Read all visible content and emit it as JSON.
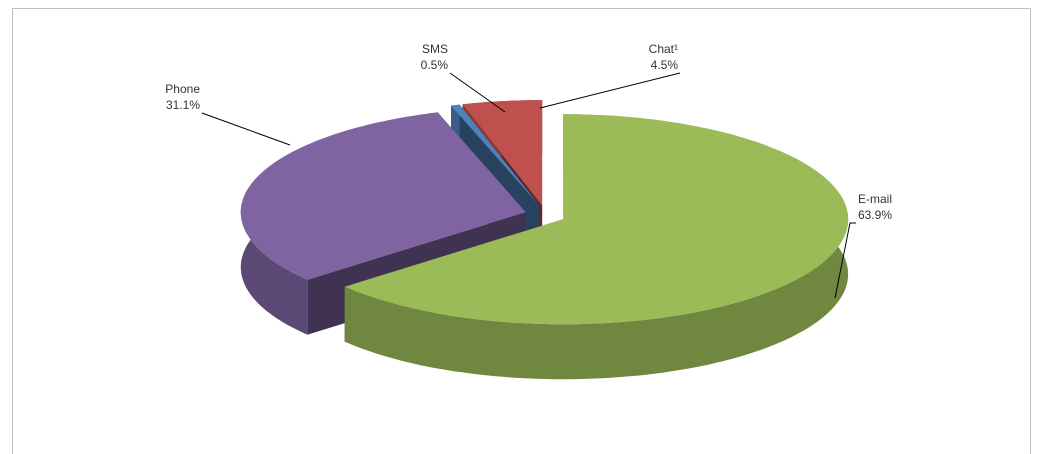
{
  "chart_data": {
    "type": "pie3d",
    "categories": [
      "E-mail",
      "Phone",
      "SMS",
      "Chat¹"
    ],
    "values": [
      63.9,
      31.1,
      0.5,
      4.5
    ],
    "value_labels": [
      "63.9%",
      "31.1%",
      "0.5%",
      "4.5%"
    ],
    "colors": [
      "#9bbb59",
      "#8064a2",
      "#4f81bd",
      "#c0504d"
    ]
  }
}
